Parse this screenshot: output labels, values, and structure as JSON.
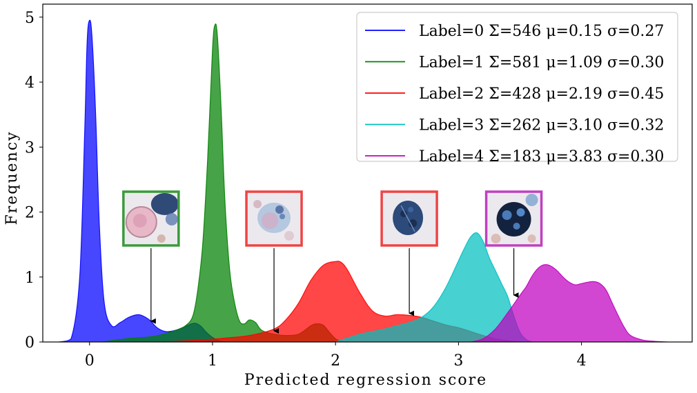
{
  "chart_data": {
    "type": "area",
    "title": "",
    "xlabel": "Predicted regression score",
    "ylabel": "Frequency",
    "xlim": [
      -0.38,
      4.9
    ],
    "ylim": [
      0,
      5.2
    ],
    "xticks": [
      0,
      1,
      2,
      3,
      4
    ],
    "yticks": [
      0,
      1,
      2,
      3,
      4,
      5
    ],
    "grid": false,
    "legend_position": "top-right",
    "series": [
      {
        "name": "Label=0 Σ=546 μ=0.15 σ=0.27",
        "color": "#0000ff",
        "x": [
          -0.25,
          -0.15,
          -0.08,
          -0.04,
          -0.02,
          0.0,
          0.02,
          0.05,
          0.08,
          0.12,
          0.18,
          0.25,
          0.32,
          0.4,
          0.48,
          0.55,
          0.62,
          0.7,
          0.78,
          0.85,
          0.9,
          0.95,
          1.0,
          1.05,
          1.1
        ],
        "y": [
          0.0,
          0.05,
          1.0,
          3.2,
          4.6,
          4.95,
          4.7,
          3.5,
          1.8,
          0.6,
          0.25,
          0.3,
          0.38,
          0.42,
          0.35,
          0.22,
          0.16,
          0.18,
          0.24,
          0.29,
          0.25,
          0.15,
          0.07,
          0.02,
          0.0
        ]
      },
      {
        "name": "Label=1 Σ=581 μ=1.09 σ=0.30",
        "color": "#008000",
        "x": [
          0.1,
          0.3,
          0.5,
          0.6,
          0.7,
          0.78,
          0.84,
          0.88,
          0.92,
          0.96,
          1.0,
          1.02,
          1.04,
          1.07,
          1.1,
          1.14,
          1.18,
          1.22,
          1.26,
          1.3,
          1.35,
          1.4,
          1.5,
          1.6,
          1.7,
          1.8,
          1.85,
          1.9,
          1.95,
          2.0,
          2.05,
          2.1
        ],
        "y": [
          0.0,
          0.05,
          0.08,
          0.12,
          0.18,
          0.25,
          0.4,
          0.8,
          1.5,
          2.8,
          4.5,
          4.88,
          4.7,
          3.6,
          2.2,
          1.1,
          0.6,
          0.32,
          0.28,
          0.34,
          0.3,
          0.18,
          0.12,
          0.1,
          0.12,
          0.25,
          0.28,
          0.26,
          0.15,
          0.05,
          0.01,
          0.0
        ]
      },
      {
        "name": "Label=2 Σ=428 μ=2.19 σ=0.45",
        "color": "#ff0000",
        "x": [
          0.6,
          0.9,
          1.1,
          1.3,
          1.5,
          1.6,
          1.7,
          1.8,
          1.9,
          2.0,
          2.05,
          2.1,
          2.2,
          2.3,
          2.4,
          2.5,
          2.6,
          2.7,
          2.8,
          2.9,
          3.0,
          3.1,
          3.2,
          3.3,
          3.4,
          3.5
        ],
        "y": [
          0.0,
          0.03,
          0.06,
          0.1,
          0.2,
          0.35,
          0.6,
          0.95,
          1.18,
          1.24,
          1.22,
          1.1,
          0.75,
          0.48,
          0.4,
          0.42,
          0.41,
          0.38,
          0.32,
          0.26,
          0.22,
          0.16,
          0.1,
          0.05,
          0.02,
          0.0
        ]
      },
      {
        "name": "Label=3 Σ=262 μ=3.10 σ=0.32",
        "color": "#00bfbf",
        "x": [
          2.0,
          2.2,
          2.4,
          2.5,
          2.6,
          2.7,
          2.8,
          2.9,
          3.0,
          3.05,
          3.1,
          3.15,
          3.2,
          3.25,
          3.3,
          3.35,
          3.4,
          3.45,
          3.5,
          3.55,
          3.6
        ],
        "y": [
          0.0,
          0.12,
          0.2,
          0.25,
          0.3,
          0.38,
          0.55,
          0.85,
          1.25,
          1.45,
          1.62,
          1.68,
          1.55,
          1.3,
          1.1,
          0.9,
          0.7,
          0.4,
          0.15,
          0.04,
          0.0
        ]
      },
      {
        "name": "Label=4 Σ=183 μ=3.83 σ=0.30",
        "color": "#bf00bf",
        "x": [
          3.1,
          3.2,
          3.3,
          3.4,
          3.5,
          3.55,
          3.6,
          3.65,
          3.7,
          3.75,
          3.8,
          3.85,
          3.9,
          3.95,
          4.0,
          4.05,
          4.1,
          4.15,
          4.2,
          4.25,
          4.3,
          4.35,
          4.4,
          4.5,
          4.6,
          4.7
        ],
        "y": [
          0.0,
          0.05,
          0.2,
          0.45,
          0.72,
          0.85,
          1.02,
          1.14,
          1.19,
          1.17,
          1.1,
          1.0,
          0.92,
          0.88,
          0.9,
          0.92,
          0.93,
          0.9,
          0.8,
          0.6,
          0.4,
          0.22,
          0.1,
          0.03,
          0.01,
          0.0
        ]
      }
    ],
    "annotations": [
      {
        "name": "green-cell-thumbnail",
        "frame_color": "#3a9a3a",
        "tip_x": 0.5,
        "tip_y": 0.3,
        "variant": 0
      },
      {
        "name": "red-cell-thumbnail-1",
        "frame_color": "#ee4444",
        "tip_x": 1.5,
        "tip_y": 0.15,
        "variant": 1
      },
      {
        "name": "red-cell-thumbnail-2",
        "frame_color": "#ee4444",
        "tip_x": 2.6,
        "tip_y": 0.42,
        "variant": 2
      },
      {
        "name": "magenta-cell-thumbnail",
        "frame_color": "#c040c0",
        "tip_x": 3.45,
        "tip_y": 0.7,
        "variant": 3
      }
    ]
  }
}
